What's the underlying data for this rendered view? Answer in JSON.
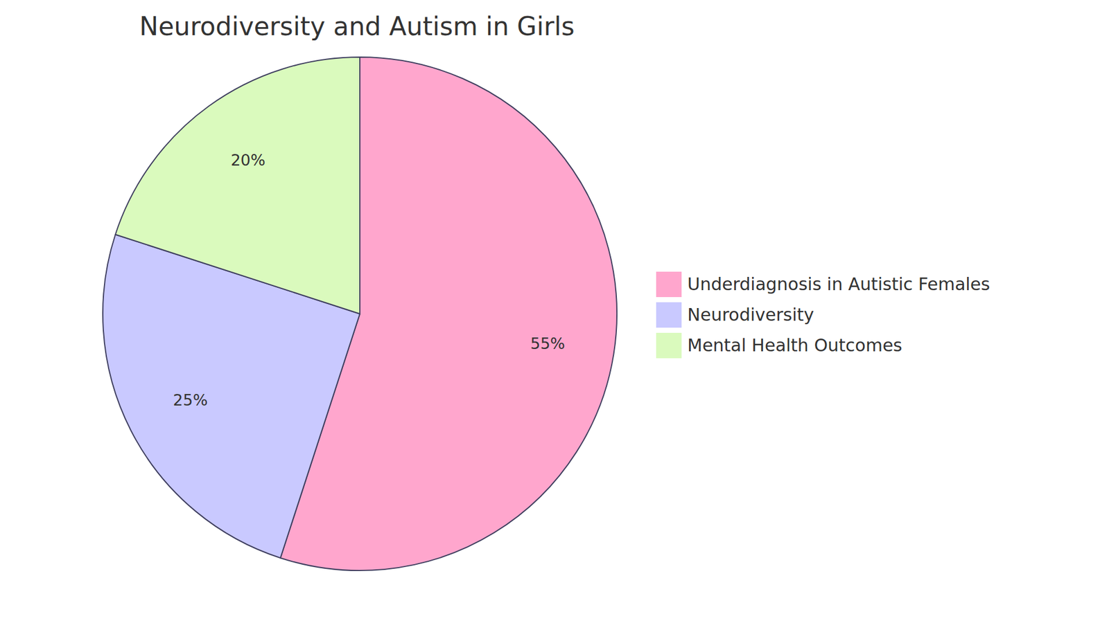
{
  "chart_data": {
    "type": "pie",
    "title": "Neurodiversity and Autism in Girls",
    "categories": [
      "Underdiagnosis in Autistic Females",
      "Neurodiversity",
      "Mental Health Outcomes"
    ],
    "values": [
      55,
      25,
      20
    ],
    "value_labels": [
      "55%",
      "25%",
      "20%"
    ],
    "colors": [
      "#ffa6cd",
      "#c9c9ff",
      "#dafabd"
    ],
    "data_labels": true,
    "legend": "right"
  }
}
